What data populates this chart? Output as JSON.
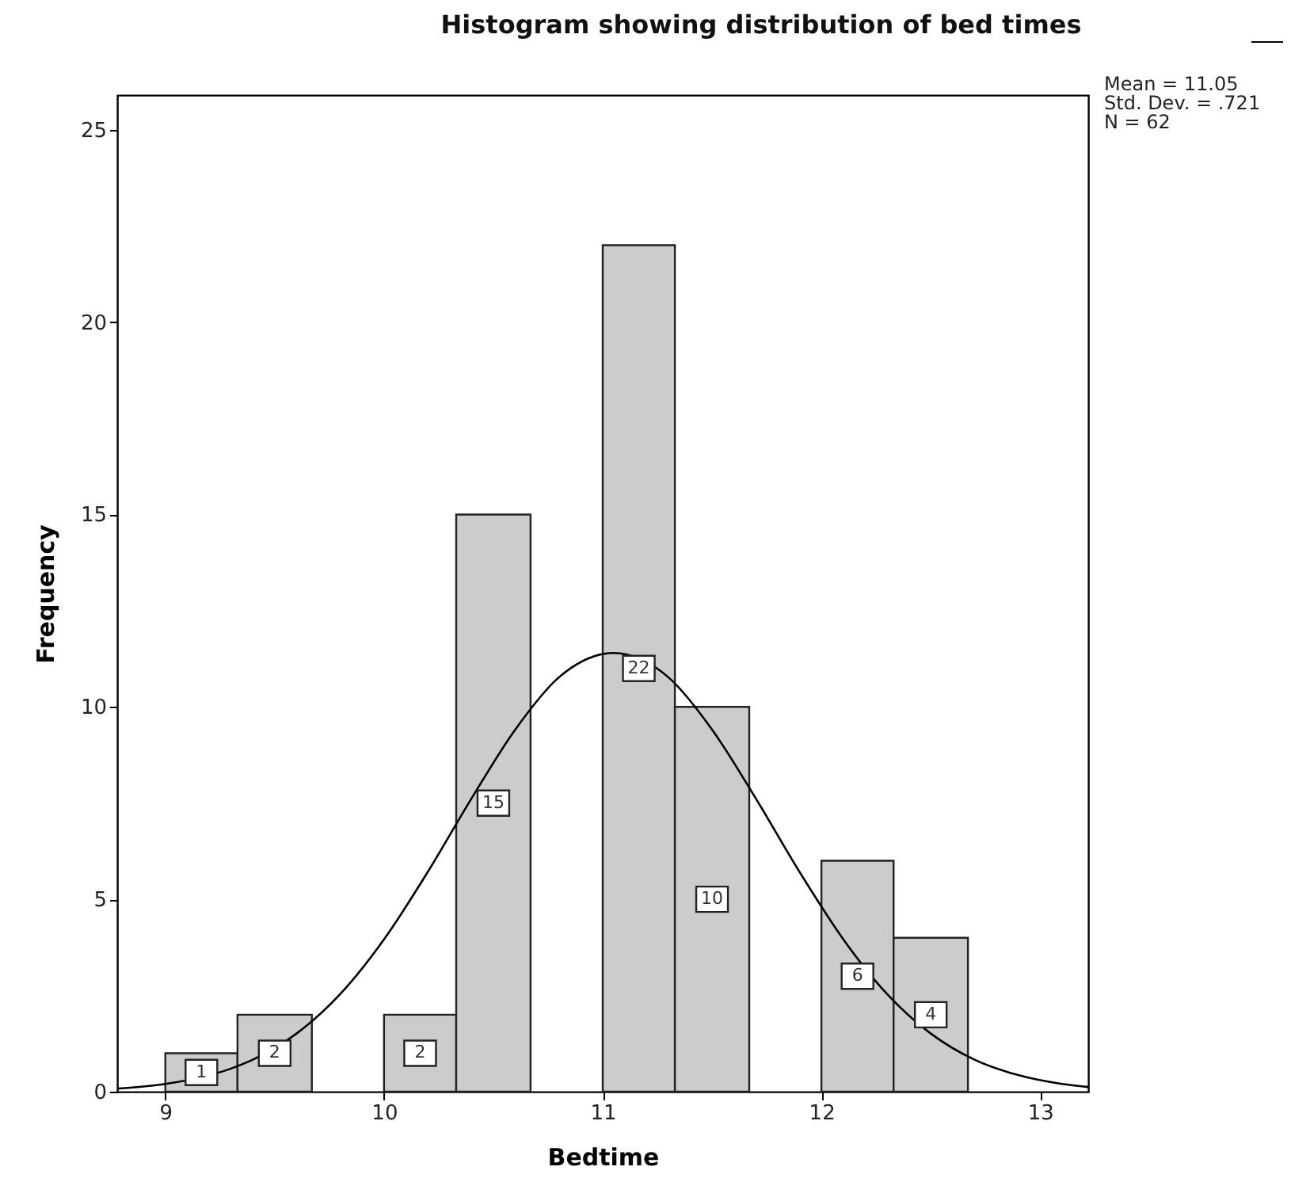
{
  "chart_data": {
    "type": "histogram",
    "title": "Histogram showing distribution of bed times",
    "xlabel": "Bedtime",
    "ylabel": "Frequency",
    "bins": [
      9,
      9.33,
      9.67,
      10,
      10.33,
      10.67,
      11,
      11.33,
      11.67,
      12,
      12.33,
      12.67
    ],
    "values": [
      1,
      2,
      0,
      2,
      15,
      0,
      22,
      10,
      0,
      6,
      4
    ],
    "value_labels": [
      "1",
      "2",
      null,
      "2",
      "15",
      null,
      "22",
      "10",
      null,
      "6",
      "4"
    ],
    "color": "#cccccc",
    "series": [
      {
        "type": "line",
        "color": "#000000",
        "x": [
          8.78,
          9.0,
          9.3,
          9.4,
          9.6,
          9.8,
          10.0,
          10.2,
          10.4,
          10.6,
          10.8,
          11.05,
          11.3,
          11.5,
          11.7,
          11.9,
          12.1,
          12.3,
          12.5,
          12.7,
          12.9,
          13.1,
          13.22
        ],
        "values": [
          0.08,
          0.2,
          0.6,
          0.83,
          1.51,
          2.54,
          3.96,
          5.71,
          7.62,
          9.41,
          10.77,
          11.4,
          10.77,
          9.41,
          7.62,
          5.71,
          3.96,
          2.54,
          1.51,
          0.83,
          0.43,
          0.2,
          0.12
        ]
      }
    ],
    "annotations": [
      "Mean = 11.05",
      "Std. Dev. = .721",
      "N = 62"
    ],
    "xlim": [
      8.78,
      13.22
    ],
    "ylim": [
      0,
      25.9
    ],
    "xticks": [
      9,
      10,
      11,
      12,
      13
    ],
    "yticks": [
      0,
      5,
      10,
      15,
      20,
      25
    ],
    "grid": false
  }
}
